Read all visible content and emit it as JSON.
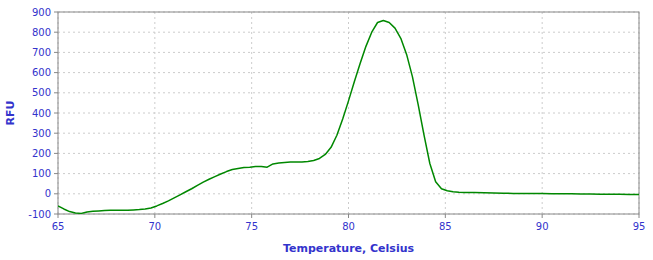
{
  "chart_data": {
    "type": "line",
    "xlabel": "Temperature, Celsius",
    "ylabel": "RFU",
    "xlim": [
      65,
      95
    ],
    "ylim": [
      -100,
      900
    ],
    "xticks": [
      65,
      70,
      75,
      80,
      85,
      90,
      95
    ],
    "yticks": [
      -100,
      0,
      100,
      200,
      300,
      400,
      500,
      600,
      700,
      800,
      900
    ],
    "grid": true,
    "color": "#008800",
    "x": [
      65.0,
      65.3,
      65.6,
      65.9,
      66.2,
      66.5,
      66.8,
      67.1,
      67.4,
      67.7,
      68.0,
      68.3,
      68.6,
      68.9,
      69.2,
      69.5,
      69.8,
      70.1,
      70.4,
      70.7,
      71.0,
      71.3,
      71.6,
      71.9,
      72.2,
      72.5,
      72.8,
      73.1,
      73.4,
      73.7,
      74.0,
      74.3,
      74.6,
      74.9,
      75.2,
      75.5,
      75.8,
      76.1,
      76.4,
      76.7,
      77.0,
      77.3,
      77.6,
      77.9,
      78.2,
      78.5,
      78.8,
      79.1,
      79.4,
      79.7,
      80.0,
      80.3,
      80.6,
      80.9,
      81.2,
      81.5,
      81.8,
      82.1,
      82.4,
      82.7,
      83.0,
      83.3,
      83.6,
      83.9,
      84.2,
      84.5,
      84.8,
      85.1,
      85.4,
      85.7,
      86.0,
      86.5,
      87.0,
      87.5,
      88.0,
      88.5,
      89.0,
      89.5,
      90.0,
      90.5,
      91.0,
      91.5,
      92.0,
      92.5,
      93.0,
      93.5,
      94.0,
      94.5,
      95.0
    ],
    "values": [
      -60,
      -75,
      -88,
      -95,
      -97,
      -90,
      -87,
      -85,
      -83,
      -82,
      -82,
      -82,
      -82,
      -80,
      -78,
      -75,
      -70,
      -60,
      -48,
      -35,
      -20,
      -5,
      10,
      25,
      42,
      58,
      72,
      85,
      98,
      110,
      120,
      125,
      130,
      132,
      135,
      135,
      132,
      148,
      152,
      155,
      157,
      158,
      157,
      160,
      165,
      175,
      195,
      230,
      290,
      370,
      460,
      555,
      645,
      730,
      800,
      848,
      858,
      848,
      820,
      770,
      690,
      580,
      440,
      290,
      150,
      60,
      25,
      15,
      10,
      8,
      7,
      6,
      5,
      4,
      3,
      2,
      2,
      1,
      1,
      0,
      0,
      0,
      -1,
      -1,
      -2,
      -2,
      -2,
      -3,
      -3
    ]
  }
}
